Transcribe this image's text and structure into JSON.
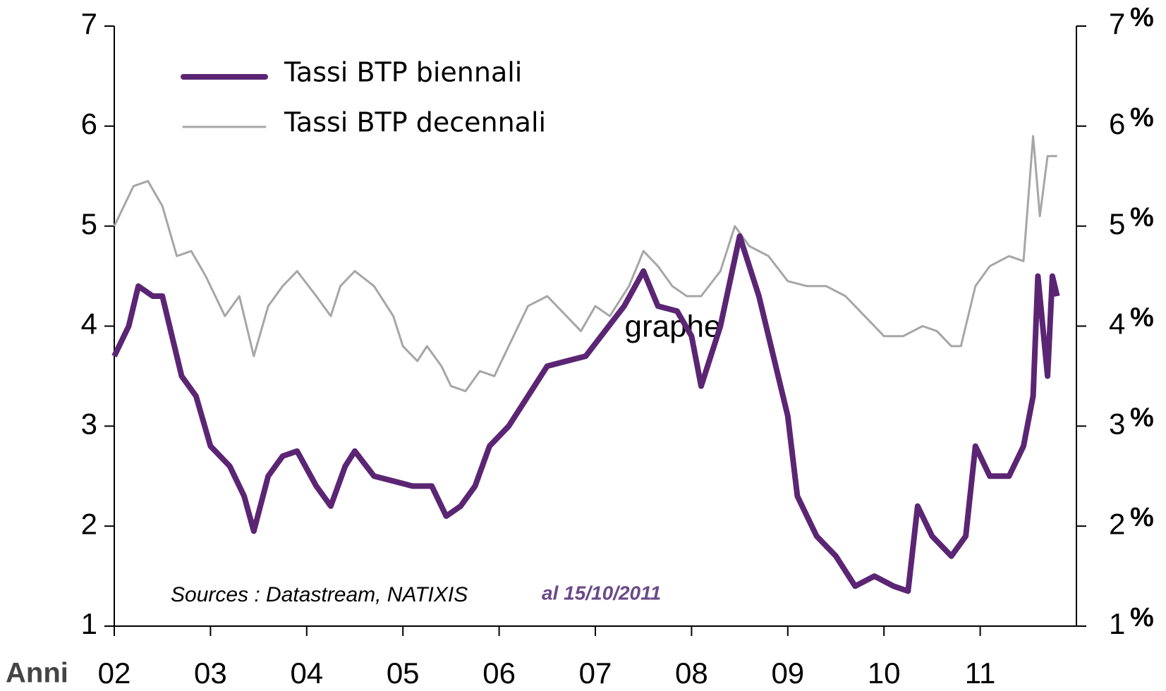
{
  "chart_data": {
    "type": "line",
    "x_label": "Anni",
    "source": "Sources : Datastream, NATIXIS",
    "date_note": "al 15/10/2011",
    "watermark": "graphe",
    "xlim": [
      2002,
      2012
    ],
    "xticks": [
      {
        "value": 2002,
        "label": "02"
      },
      {
        "value": 2003,
        "label": "03"
      },
      {
        "value": 2004,
        "label": "04"
      },
      {
        "value": 2005,
        "label": "05"
      },
      {
        "value": 2006,
        "label": "06"
      },
      {
        "value": 2007,
        "label": "07"
      },
      {
        "value": 2008,
        "label": "08"
      },
      {
        "value": 2009,
        "label": "09"
      },
      {
        "value": 2010,
        "label": "10"
      },
      {
        "value": 2011,
        "label": "11"
      }
    ],
    "ylim": [
      1,
      7
    ],
    "yticks": [
      1,
      2,
      3,
      4,
      5,
      6,
      7
    ],
    "y2lim": [
      1,
      7
    ],
    "y2ticks": [
      1,
      2,
      3,
      4,
      5,
      6,
      7
    ],
    "y2_unit": "%",
    "legend": "upper left",
    "series": [
      {
        "name": "Tassi BTP biennali",
        "color": "#5b2574",
        "width": 8,
        "x": [
          2002.0,
          2002.15,
          2002.25,
          2002.4,
          2002.5,
          2002.6,
          2002.7,
          2002.85,
          2003.0,
          2003.2,
          2003.35,
          2003.45,
          2003.6,
          2003.75,
          2003.9,
          2004.1,
          2004.25,
          2004.4,
          2004.5,
          2004.7,
          2004.9,
          2005.1,
          2005.3,
          2005.45,
          2005.6,
          2005.75,
          2005.9,
          2006.1,
          2006.3,
          2006.5,
          2006.7,
          2006.9,
          2007.1,
          2007.3,
          2007.5,
          2007.65,
          2007.85,
          2008.0,
          2008.1,
          2008.3,
          2008.5,
          2008.7,
          2008.9,
          2009.0,
          2009.1,
          2009.3,
          2009.5,
          2009.7,
          2009.9,
          2010.1,
          2010.25,
          2010.35,
          2010.5,
          2010.7,
          2010.85,
          2010.95,
          2011.1,
          2011.3,
          2011.45,
          2011.55,
          2011.6,
          2011.7,
          2011.75,
          2011.8
        ],
        "values": [
          3.7,
          4.0,
          4.4,
          4.3,
          4.3,
          3.9,
          3.5,
          3.3,
          2.8,
          2.6,
          2.3,
          1.95,
          2.5,
          2.7,
          2.75,
          2.4,
          2.2,
          2.6,
          2.75,
          2.5,
          2.45,
          2.4,
          2.4,
          2.1,
          2.2,
          2.4,
          2.8,
          3.0,
          3.3,
          3.6,
          3.65,
          3.7,
          3.95,
          4.2,
          4.55,
          4.2,
          4.15,
          3.9,
          3.4,
          4.0,
          4.9,
          4.3,
          3.5,
          3.1,
          2.3,
          1.9,
          1.7,
          1.4,
          1.5,
          1.4,
          1.35,
          2.2,
          1.9,
          1.7,
          1.9,
          2.8,
          2.5,
          2.5,
          2.8,
          3.3,
          4.5,
          3.5,
          4.5,
          4.3
        ]
      },
      {
        "name": "Tassi BTP decennali",
        "color": "#a6a6a6",
        "width": 3,
        "x": [
          2002.0,
          2002.2,
          2002.35,
          2002.5,
          2002.65,
          2002.8,
          2002.95,
          2003.15,
          2003.3,
          2003.45,
          2003.6,
          2003.75,
          2003.9,
          2004.1,
          2004.25,
          2004.35,
          2004.5,
          2004.7,
          2004.9,
          2005.0,
          2005.15,
          2005.25,
          2005.4,
          2005.5,
          2005.65,
          2005.8,
          2005.95,
          2006.1,
          2006.3,
          2006.5,
          2006.7,
          2006.85,
          2007.0,
          2007.15,
          2007.35,
          2007.5,
          2007.65,
          2007.8,
          2007.95,
          2008.1,
          2008.3,
          2008.45,
          2008.6,
          2008.8,
          2009.0,
          2009.2,
          2009.4,
          2009.6,
          2009.8,
          2010.0,
          2010.2,
          2010.4,
          2010.55,
          2010.7,
          2010.8,
          2010.95,
          2011.1,
          2011.3,
          2011.45,
          2011.55,
          2011.62,
          2011.7,
          2011.8
        ],
        "values": [
          5.0,
          5.4,
          5.45,
          5.2,
          4.7,
          4.75,
          4.5,
          4.1,
          4.3,
          3.7,
          4.2,
          4.4,
          4.55,
          4.3,
          4.1,
          4.4,
          4.55,
          4.4,
          4.1,
          3.8,
          3.65,
          3.8,
          3.6,
          3.4,
          3.35,
          3.55,
          3.5,
          3.8,
          4.2,
          4.3,
          4.1,
          3.95,
          4.2,
          4.1,
          4.4,
          4.75,
          4.6,
          4.4,
          4.3,
          4.3,
          4.55,
          5.0,
          4.8,
          4.7,
          4.45,
          4.4,
          4.4,
          4.3,
          4.1,
          3.9,
          3.9,
          4.0,
          3.95,
          3.8,
          3.8,
          4.4,
          4.6,
          4.7,
          4.65,
          5.9,
          5.1,
          5.7,
          5.7
        ]
      }
    ]
  }
}
